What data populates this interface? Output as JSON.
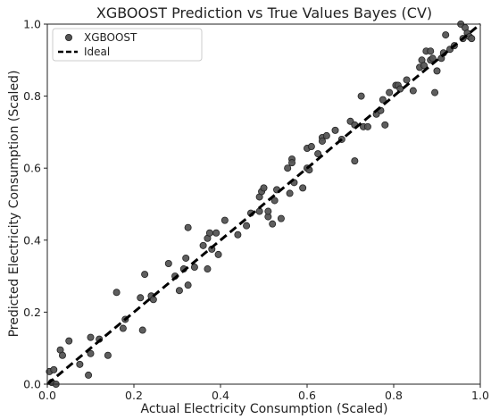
{
  "chart_data": {
    "type": "scatter",
    "title": "XGBOOST Prediction vs True Values Bayes (CV)",
    "xlabel": "Actual Electricity Consumption (Scaled)",
    "ylabel": "Predicted Electricity Consumption (Scaled)",
    "xlim": [
      0,
      1
    ],
    "ylim": [
      0,
      1
    ],
    "xticks": [
      "0.0",
      "0.2",
      "0.4",
      "0.6",
      "0.8",
      "1.0"
    ],
    "yticks": [
      "0.0",
      "0.2",
      "0.4",
      "0.6",
      "0.8",
      "1.0"
    ],
    "grid": false,
    "legend_position": "top-left",
    "series": [
      {
        "name": "XGBOOST",
        "kind": "scatter",
        "color": "#555555",
        "points": [
          [
            0.005,
            0.035
          ],
          [
            0.01,
            0.005
          ],
          [
            0.015,
            0.04
          ],
          [
            0.02,
            0.0
          ],
          [
            0.03,
            0.095
          ],
          [
            0.035,
            0.08
          ],
          [
            0.05,
            0.12
          ],
          [
            0.075,
            0.055
          ],
          [
            0.095,
            0.025
          ],
          [
            0.1,
            0.13
          ],
          [
            0.1,
            0.085
          ],
          [
            0.12,
            0.125
          ],
          [
            0.14,
            0.08
          ],
          [
            0.16,
            0.255
          ],
          [
            0.175,
            0.155
          ],
          [
            0.18,
            0.18
          ],
          [
            0.215,
            0.24
          ],
          [
            0.22,
            0.15
          ],
          [
            0.225,
            0.305
          ],
          [
            0.24,
            0.245
          ],
          [
            0.245,
            0.235
          ],
          [
            0.28,
            0.335
          ],
          [
            0.295,
            0.3
          ],
          [
            0.305,
            0.26
          ],
          [
            0.315,
            0.32
          ],
          [
            0.32,
            0.35
          ],
          [
            0.325,
            0.435
          ],
          [
            0.325,
            0.275
          ],
          [
            0.34,
            0.325
          ],
          [
            0.36,
            0.385
          ],
          [
            0.37,
            0.405
          ],
          [
            0.375,
            0.42
          ],
          [
            0.37,
            0.32
          ],
          [
            0.38,
            0.375
          ],
          [
            0.39,
            0.42
          ],
          [
            0.395,
            0.36
          ],
          [
            0.41,
            0.455
          ],
          [
            0.44,
            0.415
          ],
          [
            0.46,
            0.44
          ],
          [
            0.47,
            0.475
          ],
          [
            0.49,
            0.48
          ],
          [
            0.49,
            0.52
          ],
          [
            0.495,
            0.535
          ],
          [
            0.5,
            0.545
          ],
          [
            0.51,
            0.465
          ],
          [
            0.51,
            0.48
          ],
          [
            0.52,
            0.445
          ],
          [
            0.525,
            0.51
          ],
          [
            0.53,
            0.54
          ],
          [
            0.54,
            0.46
          ],
          [
            0.555,
            0.6
          ],
          [
            0.56,
            0.53
          ],
          [
            0.565,
            0.625
          ],
          [
            0.565,
            0.615
          ],
          [
            0.57,
            0.56
          ],
          [
            0.59,
            0.545
          ],
          [
            0.6,
            0.6
          ],
          [
            0.6,
            0.655
          ],
          [
            0.605,
            0.595
          ],
          [
            0.61,
            0.66
          ],
          [
            0.625,
            0.64
          ],
          [
            0.635,
            0.685
          ],
          [
            0.635,
            0.675
          ],
          [
            0.645,
            0.69
          ],
          [
            0.665,
            0.705
          ],
          [
            0.68,
            0.68
          ],
          [
            0.7,
            0.73
          ],
          [
            0.71,
            0.62
          ],
          [
            0.71,
            0.72
          ],
          [
            0.725,
            0.8
          ],
          [
            0.73,
            0.715
          ],
          [
            0.74,
            0.715
          ],
          [
            0.76,
            0.75
          ],
          [
            0.77,
            0.76
          ],
          [
            0.775,
            0.79
          ],
          [
            0.78,
            0.72
          ],
          [
            0.79,
            0.81
          ],
          [
            0.805,
            0.83
          ],
          [
            0.81,
            0.83
          ],
          [
            0.815,
            0.82
          ],
          [
            0.83,
            0.845
          ],
          [
            0.845,
            0.815
          ],
          [
            0.86,
            0.88
          ],
          [
            0.865,
            0.9
          ],
          [
            0.87,
            0.885
          ],
          [
            0.875,
            0.925
          ],
          [
            0.885,
            0.925
          ],
          [
            0.885,
            0.9
          ],
          [
            0.89,
            0.905
          ],
          [
            0.895,
            0.81
          ],
          [
            0.9,
            0.87
          ],
          [
            0.91,
            0.905
          ],
          [
            0.915,
            0.92
          ],
          [
            0.92,
            0.97
          ],
          [
            0.93,
            0.93
          ],
          [
            0.94,
            0.94
          ],
          [
            0.955,
            1.0
          ],
          [
            0.96,
            0.96
          ],
          [
            0.965,
            0.99
          ],
          [
            0.97,
            0.975
          ],
          [
            0.975,
            0.965
          ],
          [
            0.98,
            0.96
          ]
        ]
      },
      {
        "name": "Ideal",
        "kind": "line",
        "style": "dashed",
        "color": "#000000",
        "points": [
          [
            0,
            0
          ],
          [
            1,
            1
          ]
        ]
      }
    ]
  }
}
